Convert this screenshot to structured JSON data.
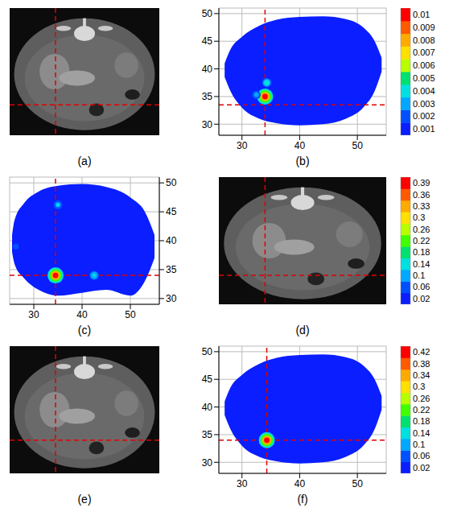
{
  "colormap": [
    "#0a1eff",
    "#0050ff",
    "#00a8ff",
    "#00e0e0",
    "#00e070",
    "#40ff00",
    "#b8ff00",
    "#ffe000",
    "#ffaa00",
    "#ff5a00",
    "#ff0000"
  ],
  "chart_data": [
    {
      "type": "image",
      "label": "(a)"
    },
    {
      "type": "heatmap",
      "label": "(b)",
      "xlim": [
        26,
        55
      ],
      "ylim": [
        28,
        51
      ],
      "xticks": [
        30,
        40,
        50
      ],
      "yticks": [
        30,
        35,
        40,
        45,
        50
      ],
      "grid": true,
      "boundary": {
        "x": [
          27,
          28,
          30,
          33,
          36,
          40,
          44,
          48,
          51,
          53,
          54.2
        ],
        "lower": [
          38.5,
          36,
          33,
          31,
          30.2,
          29.8,
          30,
          31,
          33,
          36,
          39.5
        ],
        "upper": [
          41,
          43.5,
          45.8,
          47.8,
          48.9,
          49.4,
          49.5,
          49,
          47.5,
          45,
          42
        ]
      },
      "hotspots": [
        {
          "x": 34,
          "y": 35,
          "value": 0.01
        },
        {
          "x": 34.3,
          "y": 37.5,
          "value": 0.004
        },
        {
          "x": 32.5,
          "y": 35.3,
          "value": 0.003
        }
      ],
      "crosshair": {
        "x": 34,
        "y": 33.5
      },
      "colorbar": {
        "ticks": [
          0.001,
          0.002,
          0.003,
          0.004,
          0.005,
          0.006,
          0.007,
          0.008,
          0.009,
          0.01
        ]
      }
    },
    {
      "type": "heatmap",
      "label": "(c)",
      "xlim": [
        25,
        56
      ],
      "ylim": [
        29,
        51
      ],
      "xticks": [
        30,
        40,
        50
      ],
      "yticks": [
        30,
        35,
        40,
        45,
        50
      ],
      "grid": true,
      "boundary": {
        "x": [
          25.5,
          26,
          28,
          31,
          35,
          40,
          45,
          50,
          53,
          55
        ],
        "lower": [
          38,
          36,
          33.5,
          31.5,
          30.5,
          31,
          31.5,
          30.5,
          33,
          37
        ],
        "upper": [
          41,
          43.5,
          46.5,
          48.5,
          49.5,
          49.8,
          49.3,
          47.5,
          45,
          41
        ]
      },
      "hotspots": [
        {
          "x": 34.5,
          "y": 34,
          "value": 0.39
        },
        {
          "x": 42.5,
          "y": 34,
          "value": 0.14
        },
        {
          "x": 35,
          "y": 46.2,
          "value": 0.12
        },
        {
          "x": 26.3,
          "y": 39,
          "value": 0.06
        }
      ],
      "crosshair": {
        "x": 34.5,
        "y": 34
      },
      "colorbar": {
        "ticks": [
          0.02,
          0.06,
          0.1,
          0.14,
          0.18,
          0.22,
          0.26,
          0.3,
          0.33,
          0.36,
          0.39
        ]
      }
    },
    {
      "type": "image",
      "label": "(d)"
    },
    {
      "type": "image",
      "label": "(e)"
    },
    {
      "type": "heatmap",
      "label": "(f)",
      "xlim": [
        26,
        55
      ],
      "ylim": [
        28,
        51
      ],
      "xticks": [
        30,
        40,
        50
      ],
      "yticks": [
        30,
        35,
        40,
        45,
        50
      ],
      "grid": true,
      "boundary": {
        "x": [
          27,
          28,
          30,
          33,
          36,
          40,
          44,
          48,
          51,
          53,
          54.2
        ],
        "lower": [
          38.5,
          36,
          33,
          31,
          30.2,
          29.8,
          30,
          31,
          33,
          36,
          39.5
        ],
        "upper": [
          41,
          43.5,
          45.8,
          47.8,
          48.9,
          49.4,
          49.5,
          49,
          47.5,
          45,
          42
        ]
      },
      "hotspots": [
        {
          "x": 34.3,
          "y": 34,
          "value": 0.42
        }
      ],
      "crosshair": {
        "x": 34.3,
        "y": 34
      },
      "colorbar": {
        "ticks": [
          0.02,
          0.06,
          0.1,
          0.14,
          0.18,
          0.22,
          0.26,
          0.3,
          0.34,
          0.38,
          0.42
        ]
      }
    }
  ]
}
